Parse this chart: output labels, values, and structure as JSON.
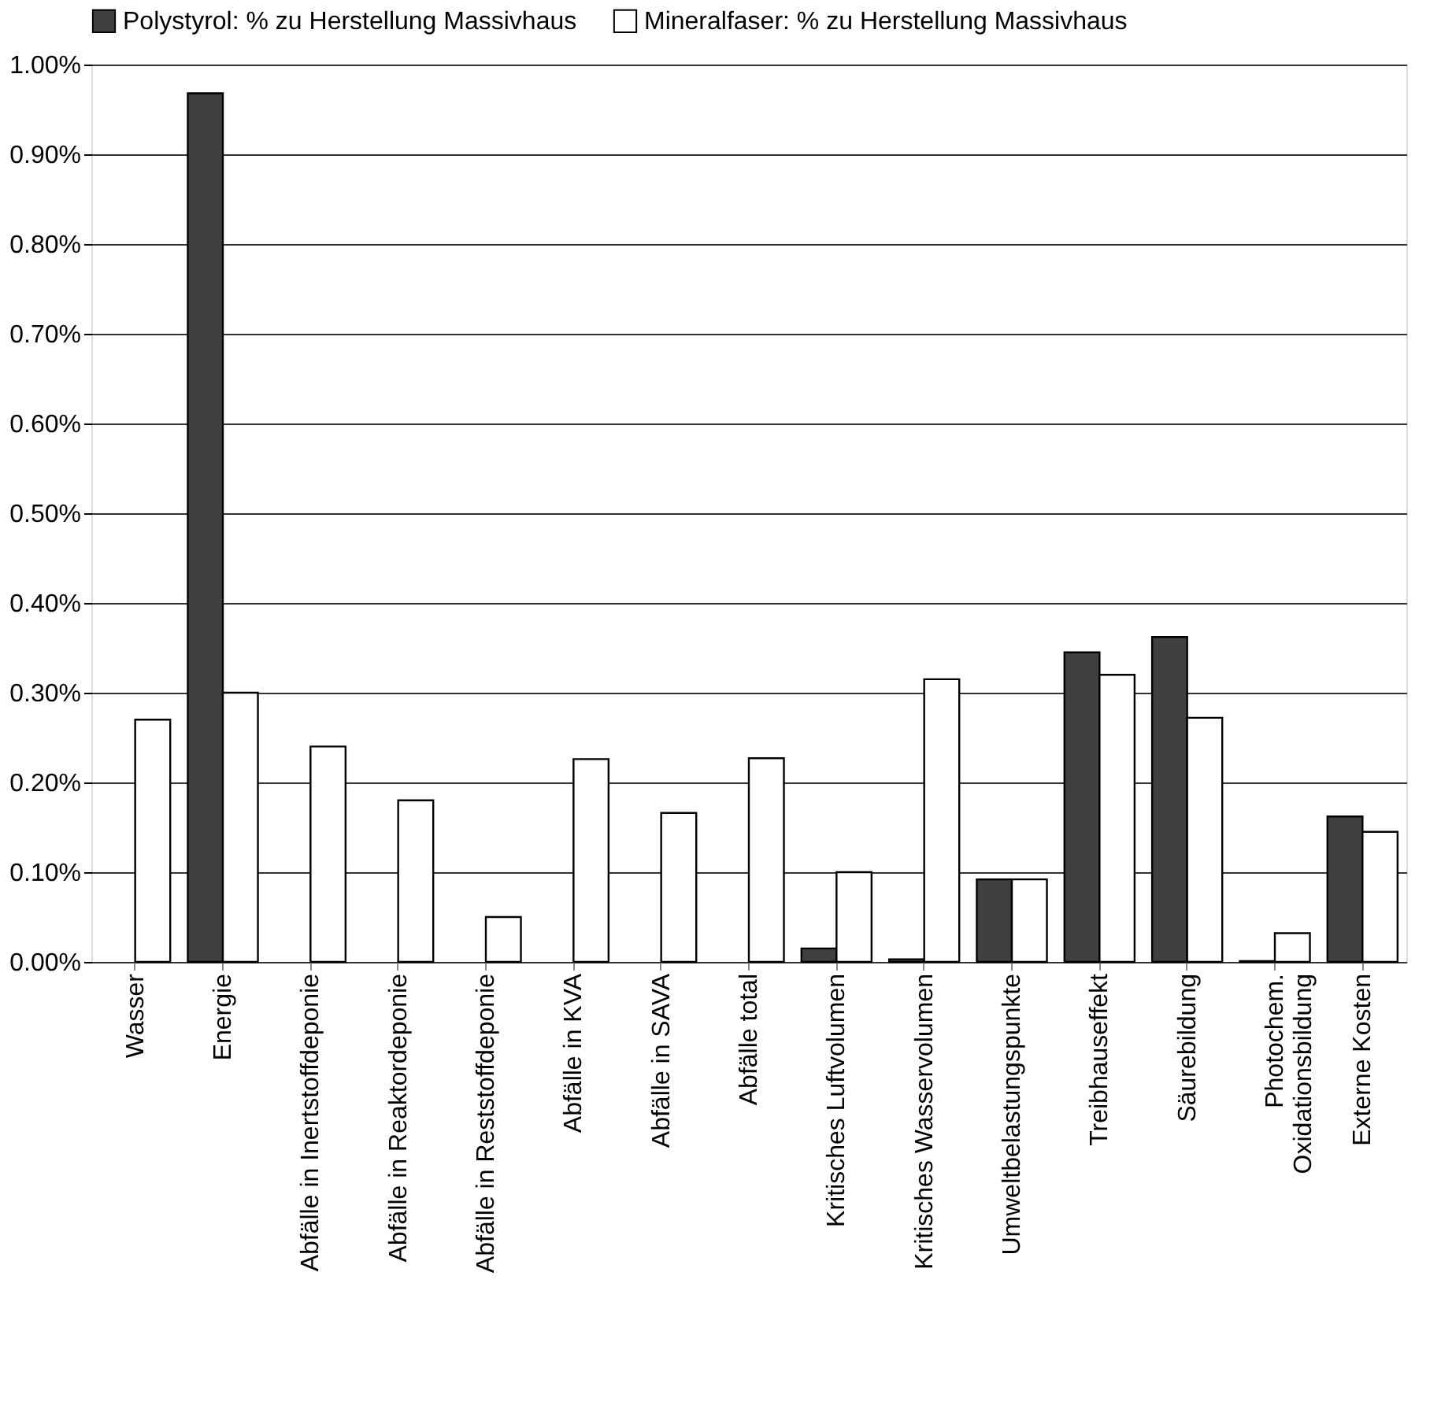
{
  "chart_data": {
    "type": "bar",
    "categories": [
      "Wasser",
      "Energie",
      "Abfälle in Inertstoffdeponie",
      "Abfälle in Reaktordeponie",
      "Abfälle in Reststoffdeponie",
      "Abfälle in KVA",
      "Abfälle in SAVA",
      "Abfälle total",
      "Kritisches Luftvolumen",
      "Kritisches Wasservolumen",
      "Umweltbelastungspunkte",
      "Treibhauseffekt",
      "Säurebildung",
      "Photochem.\nOxidationsbildung",
      "Externe Kosten"
    ],
    "series": [
      {
        "name": "Polystyrol: % zu Herstellung Massivhaus",
        "color": "#404040",
        "values": [
          null,
          0.968,
          null,
          null,
          null,
          null,
          null,
          null,
          0.015,
          0.003,
          0.092,
          0.345,
          0.362,
          0.001,
          0.162
        ]
      },
      {
        "name": "Mineralfaser: % zu Herstellung Massivhaus",
        "color": "#ffffff",
        "values": [
          0.27,
          0.3,
          0.24,
          0.18,
          0.05,
          0.226,
          0.166,
          0.227,
          0.1,
          0.315,
          0.092,
          0.32,
          0.272,
          0.032,
          0.145
        ]
      }
    ],
    "ylim": [
      0,
      1.0
    ],
    "yticks": [
      {
        "value": 0,
        "label": "0.00%"
      },
      {
        "value": 0.1,
        "label": "0.10%"
      },
      {
        "value": 0.2,
        "label": "0.20%"
      },
      {
        "value": 0.3,
        "label": "0.30%"
      },
      {
        "value": 0.4,
        "label": "0.40%"
      },
      {
        "value": 0.5,
        "label": "0.50%"
      },
      {
        "value": 0.6,
        "label": "0.60%"
      },
      {
        "value": 0.7,
        "label": "0.70%"
      },
      {
        "value": 0.8,
        "label": "0.80%"
      },
      {
        "value": 0.9,
        "label": "0.90%"
      },
      {
        "value": 1.0,
        "label": "1.00%"
      }
    ],
    "grid": "y",
    "legend": "top"
  }
}
